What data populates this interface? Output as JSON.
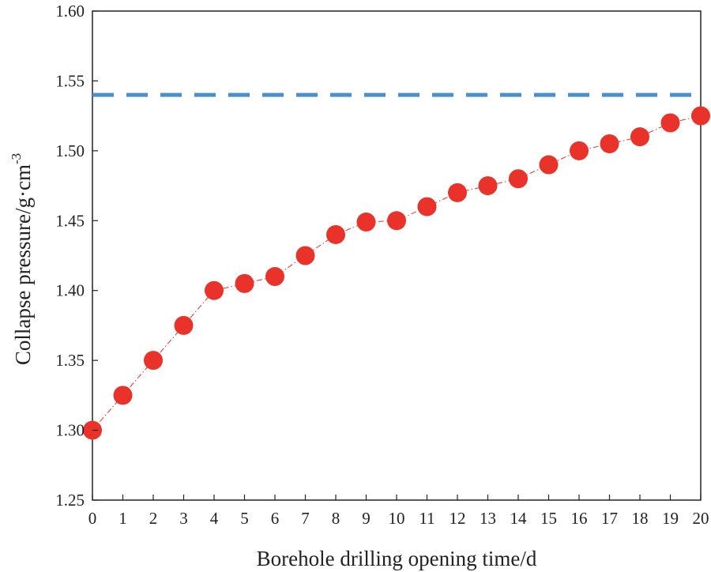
{
  "chart_data": {
    "type": "line",
    "title": "",
    "xlabel": "Borehole drilling opening time/d",
    "ylabel_base": "Collapse pressure/g·cm",
    "ylabel_sup": "-3",
    "xlim": [
      0,
      20
    ],
    "ylim": [
      1.25,
      1.6
    ],
    "x_ticks": [
      "0",
      "1",
      "2",
      "3",
      "4",
      "5",
      "6",
      "7",
      "8",
      "9",
      "10",
      "11",
      "12",
      "13",
      "14",
      "15",
      "16",
      "17",
      "18",
      "19",
      "20"
    ],
    "y_ticks": [
      "1.25",
      "1.30",
      "1.35",
      "1.40",
      "1.45",
      "1.50",
      "1.55",
      "1.60"
    ],
    "y_tick_values": [
      1.25,
      1.3,
      1.35,
      1.4,
      1.45,
      1.5,
      1.55,
      1.6
    ],
    "grid": false,
    "series": [
      {
        "name": "Collapse pressure",
        "color": "#e8322a",
        "marker": "circle",
        "x": [
          0,
          1,
          2,
          3,
          4,
          5,
          6,
          7,
          8,
          9,
          10,
          11,
          12,
          13,
          14,
          15,
          16,
          17,
          18,
          19,
          20
        ],
        "values": [
          1.3,
          1.325,
          1.35,
          1.375,
          1.4,
          1.405,
          1.41,
          1.425,
          1.44,
          1.449,
          1.45,
          1.46,
          1.47,
          1.475,
          1.48,
          1.49,
          1.5,
          1.505,
          1.51,
          1.52,
          1.525
        ]
      }
    ],
    "reference_line": {
      "y": 1.54,
      "color": "#4a8fd0",
      "style": "dashed"
    }
  }
}
